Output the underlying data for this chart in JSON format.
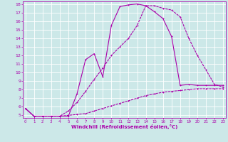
{
  "xlabel": "Windchill (Refroidissement éolien,°C)",
  "xlim": [
    0,
    23
  ],
  "ylim": [
    5,
    18
  ],
  "yticks": [
    5,
    6,
    7,
    8,
    9,
    10,
    11,
    12,
    13,
    14,
    15,
    16,
    17,
    18
  ],
  "xticks": [
    0,
    1,
    2,
    3,
    4,
    5,
    6,
    7,
    8,
    9,
    10,
    11,
    12,
    13,
    14,
    15,
    16,
    17,
    18,
    19,
    20,
    21,
    22,
    23
  ],
  "bg_color": "#cce8e8",
  "grid_color": "#aad4d4",
  "line_color": "#aa00aa",
  "curve1_x": [
    0,
    1,
    2,
    3,
    4,
    5,
    6,
    7,
    8,
    9,
    10,
    11,
    12,
    13,
    14,
    15,
    16,
    17,
    18,
    19,
    20,
    21,
    22,
    23
  ],
  "curve1_y": [
    5.8,
    4.9,
    4.9,
    4.9,
    4.9,
    4.9,
    7.5,
    11.5,
    12.2,
    9.5,
    15.5,
    17.7,
    17.9,
    18.0,
    17.8,
    17.1,
    16.3,
    14.2,
    8.5,
    8.6,
    8.5,
    8.5,
    8.5,
    8.5
  ],
  "curve2_x": [
    0,
    1,
    2,
    3,
    4,
    5,
    6,
    7,
    8,
    9,
    10,
    11,
    12,
    13,
    14,
    15,
    16,
    17,
    18,
    19,
    20,
    21,
    22,
    23
  ],
  "curve2_y": [
    5.8,
    4.9,
    4.9,
    4.9,
    4.9,
    5.5,
    6.5,
    7.8,
    9.2,
    10.5,
    12.0,
    13.0,
    14.0,
    15.5,
    17.8,
    17.8,
    17.5,
    17.3,
    16.5,
    14.0,
    12.0,
    10.3,
    8.6,
    8.3
  ],
  "curve3_x": [
    0,
    1,
    2,
    3,
    4,
    5,
    6,
    7,
    8,
    9,
    10,
    11,
    12,
    13,
    14,
    15,
    16,
    17,
    18,
    19,
    20,
    21,
    22,
    23
  ],
  "curve3_y": [
    5.8,
    4.9,
    4.9,
    4.9,
    4.9,
    5.0,
    5.1,
    5.2,
    5.5,
    5.8,
    6.1,
    6.4,
    6.7,
    7.0,
    7.3,
    7.5,
    7.7,
    7.8,
    7.9,
    8.0,
    8.1,
    8.1,
    8.1,
    8.1
  ],
  "tick_fontsize": 4.5,
  "xlabel_fontsize": 5.0
}
